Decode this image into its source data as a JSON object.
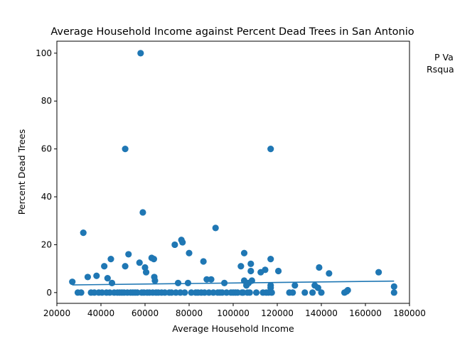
{
  "chart_data": {
    "type": "scatter",
    "title": "Average Household Income against Percent Dead Trees in San Antonio",
    "xlabel": "Average Household Income",
    "ylabel": "Percent Dead Trees",
    "xlim": [
      20000,
      180000
    ],
    "ylim": [
      -4.5,
      105
    ],
    "xticks": [
      20000,
      40000,
      60000,
      80000,
      100000,
      120000,
      140000,
      160000,
      180000
    ],
    "yticks": [
      0,
      20,
      40,
      60,
      80,
      100
    ],
    "grid": false,
    "color": "#1f77b4",
    "annotations": [
      "P Va",
      "Rsqua"
    ],
    "regression_line": {
      "x": [
        27000,
        173000
      ],
      "y": [
        3.2,
        4.8
      ]
    },
    "points": [
      {
        "x": 27000,
        "y": 4.5
      },
      {
        "x": 29500,
        "y": 0
      },
      {
        "x": 31000,
        "y": 0
      },
      {
        "x": 32000,
        "y": 25
      },
      {
        "x": 34000,
        "y": 6.5
      },
      {
        "x": 35500,
        "y": 0
      },
      {
        "x": 37000,
        "y": 0
      },
      {
        "x": 38000,
        "y": 7
      },
      {
        "x": 39000,
        "y": 0
      },
      {
        "x": 40500,
        "y": 0
      },
      {
        "x": 41500,
        "y": 11
      },
      {
        "x": 42500,
        "y": 0
      },
      {
        "x": 43000,
        "y": 6
      },
      {
        "x": 44000,
        "y": 0
      },
      {
        "x": 44500,
        "y": 14
      },
      {
        "x": 45000,
        "y": 4
      },
      {
        "x": 46000,
        "y": 0
      },
      {
        "x": 47500,
        "y": 0
      },
      {
        "x": 48500,
        "y": 0
      },
      {
        "x": 49500,
        "y": 0
      },
      {
        "x": 50500,
        "y": 0
      },
      {
        "x": 51000,
        "y": 60
      },
      {
        "x": 51000,
        "y": 11
      },
      {
        "x": 52000,
        "y": 0
      },
      {
        "x": 52500,
        "y": 16
      },
      {
        "x": 53500,
        "y": 0
      },
      {
        "x": 54500,
        "y": 0
      },
      {
        "x": 55500,
        "y": 0
      },
      {
        "x": 56500,
        "y": 0
      },
      {
        "x": 57500,
        "y": 12.5
      },
      {
        "x": 58000,
        "y": 100
      },
      {
        "x": 58500,
        "y": 0
      },
      {
        "x": 59000,
        "y": 33.5
      },
      {
        "x": 59500,
        "y": 0
      },
      {
        "x": 60000,
        "y": 10.5
      },
      {
        "x": 60500,
        "y": 8.5
      },
      {
        "x": 61000,
        "y": 0
      },
      {
        "x": 62000,
        "y": 0
      },
      {
        "x": 63000,
        "y": 14.5
      },
      {
        "x": 63500,
        "y": 0
      },
      {
        "x": 64000,
        "y": 14
      },
      {
        "x": 64200,
        "y": 6.5
      },
      {
        "x": 64500,
        "y": 5
      },
      {
        "x": 65000,
        "y": 0
      },
      {
        "x": 66000,
        "y": 0
      },
      {
        "x": 67500,
        "y": 0
      },
      {
        "x": 69000,
        "y": 0
      },
      {
        "x": 71000,
        "y": 0
      },
      {
        "x": 72000,
        "y": 0
      },
      {
        "x": 73500,
        "y": 20
      },
      {
        "x": 74000,
        "y": 0
      },
      {
        "x": 75000,
        "y": 4
      },
      {
        "x": 76000,
        "y": 0
      },
      {
        "x": 76500,
        "y": 22
      },
      {
        "x": 77000,
        "y": 21
      },
      {
        "x": 78000,
        "y": 0
      },
      {
        "x": 79500,
        "y": 4
      },
      {
        "x": 80000,
        "y": 16.5
      },
      {
        "x": 81000,
        "y": 0
      },
      {
        "x": 83000,
        "y": 0
      },
      {
        "x": 84000,
        "y": 0
      },
      {
        "x": 85500,
        "y": 0
      },
      {
        "x": 86500,
        "y": 13
      },
      {
        "x": 87000,
        "y": 0
      },
      {
        "x": 88000,
        "y": 5.5
      },
      {
        "x": 89000,
        "y": 0
      },
      {
        "x": 90000,
        "y": 5.5
      },
      {
        "x": 91000,
        "y": 0
      },
      {
        "x": 92000,
        "y": 27
      },
      {
        "x": 93000,
        "y": 0
      },
      {
        "x": 94000,
        "y": 0
      },
      {
        "x": 95000,
        "y": 0
      },
      {
        "x": 96000,
        "y": 4
      },
      {
        "x": 97000,
        "y": 0
      },
      {
        "x": 99000,
        "y": 0
      },
      {
        "x": 100000,
        "y": 0
      },
      {
        "x": 101000,
        "y": 0
      },
      {
        "x": 102000,
        "y": 0
      },
      {
        "x": 103500,
        "y": 11
      },
      {
        "x": 104000,
        "y": 0
      },
      {
        "x": 104500,
        "y": 0
      },
      {
        "x": 105000,
        "y": 16.5
      },
      {
        "x": 105000,
        "y": 5
      },
      {
        "x": 106000,
        "y": 3
      },
      {
        "x": 106500,
        "y": 0
      },
      {
        "x": 107000,
        "y": 4
      },
      {
        "x": 107500,
        "y": 0
      },
      {
        "x": 108000,
        "y": 12
      },
      {
        "x": 108000,
        "y": 9
      },
      {
        "x": 108500,
        "y": 5
      },
      {
        "x": 110500,
        "y": 0
      },
      {
        "x": 112500,
        "y": 8.5
      },
      {
        "x": 113500,
        "y": 0
      },
      {
        "x": 114500,
        "y": 9.5
      },
      {
        "x": 115000,
        "y": 0
      },
      {
        "x": 116000,
        "y": 0
      },
      {
        "x": 117000,
        "y": 60
      },
      {
        "x": 117000,
        "y": 14
      },
      {
        "x": 117000,
        "y": 3
      },
      {
        "x": 117000,
        "y": 2
      },
      {
        "x": 117500,
        "y": 0
      },
      {
        "x": 120500,
        "y": 9
      },
      {
        "x": 125500,
        "y": 0
      },
      {
        "x": 127000,
        "y": 0
      },
      {
        "x": 128000,
        "y": 3
      },
      {
        "x": 132500,
        "y": 0
      },
      {
        "x": 136000,
        "y": 0
      },
      {
        "x": 137000,
        "y": 3
      },
      {
        "x": 138500,
        "y": 2
      },
      {
        "x": 139000,
        "y": 10.5
      },
      {
        "x": 140000,
        "y": 0
      },
      {
        "x": 143500,
        "y": 8
      },
      {
        "x": 150500,
        "y": 0
      },
      {
        "x": 151500,
        "y": 0.5
      },
      {
        "x": 152000,
        "y": 1
      },
      {
        "x": 166000,
        "y": 8.5
      },
      {
        "x": 173000,
        "y": 2.5
      },
      {
        "x": 173000,
        "y": 0
      }
    ]
  }
}
